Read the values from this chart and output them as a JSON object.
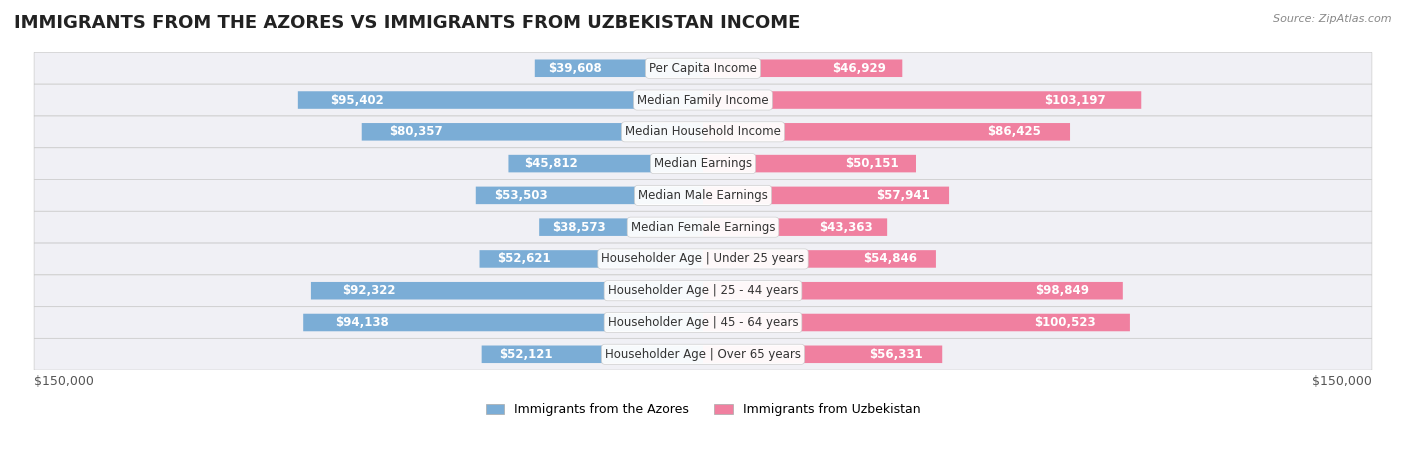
{
  "title": "IMMIGRANTS FROM THE AZORES VS IMMIGRANTS FROM UZBEKISTAN INCOME",
  "source": "Source: ZipAtlas.com",
  "categories": [
    "Per Capita Income",
    "Median Family Income",
    "Median Household Income",
    "Median Earnings",
    "Median Male Earnings",
    "Median Female Earnings",
    "Householder Age | Under 25 years",
    "Householder Age | 25 - 44 years",
    "Householder Age | 45 - 64 years",
    "Householder Age | Over 65 years"
  ],
  "azores_values": [
    39608,
    95402,
    80357,
    45812,
    53503,
    38573,
    52621,
    92322,
    94138,
    52121
  ],
  "uzbekistan_values": [
    46929,
    103197,
    86425,
    50151,
    57941,
    43363,
    54846,
    98849,
    100523,
    56331
  ],
  "azores_labels": [
    "$39,608",
    "$95,402",
    "$80,357",
    "$45,812",
    "$53,503",
    "$38,573",
    "$52,621",
    "$92,322",
    "$94,138",
    "$52,121"
  ],
  "uzbekistan_labels": [
    "$46,929",
    "$103,197",
    "$86,425",
    "$50,151",
    "$57,941",
    "$43,363",
    "$54,846",
    "$98,849",
    "$100,523",
    "$56,331"
  ],
  "azores_color": "#7badd6",
  "azores_color_dark": "#5a8fc2",
  "uzbekistan_color": "#f080a0",
  "uzbekistan_color_dark": "#e05080",
  "bar_bg_color": "#f0f0f5",
  "max_value": 150000,
  "xlabel_left": "$150,000",
  "xlabel_right": "$150,000",
  "legend_azores": "Immigrants from the Azores",
  "legend_uzbekistan": "Immigrants from Uzbekistan",
  "title_fontsize": 13,
  "label_fontsize": 8.5,
  "category_fontsize": 8.5
}
